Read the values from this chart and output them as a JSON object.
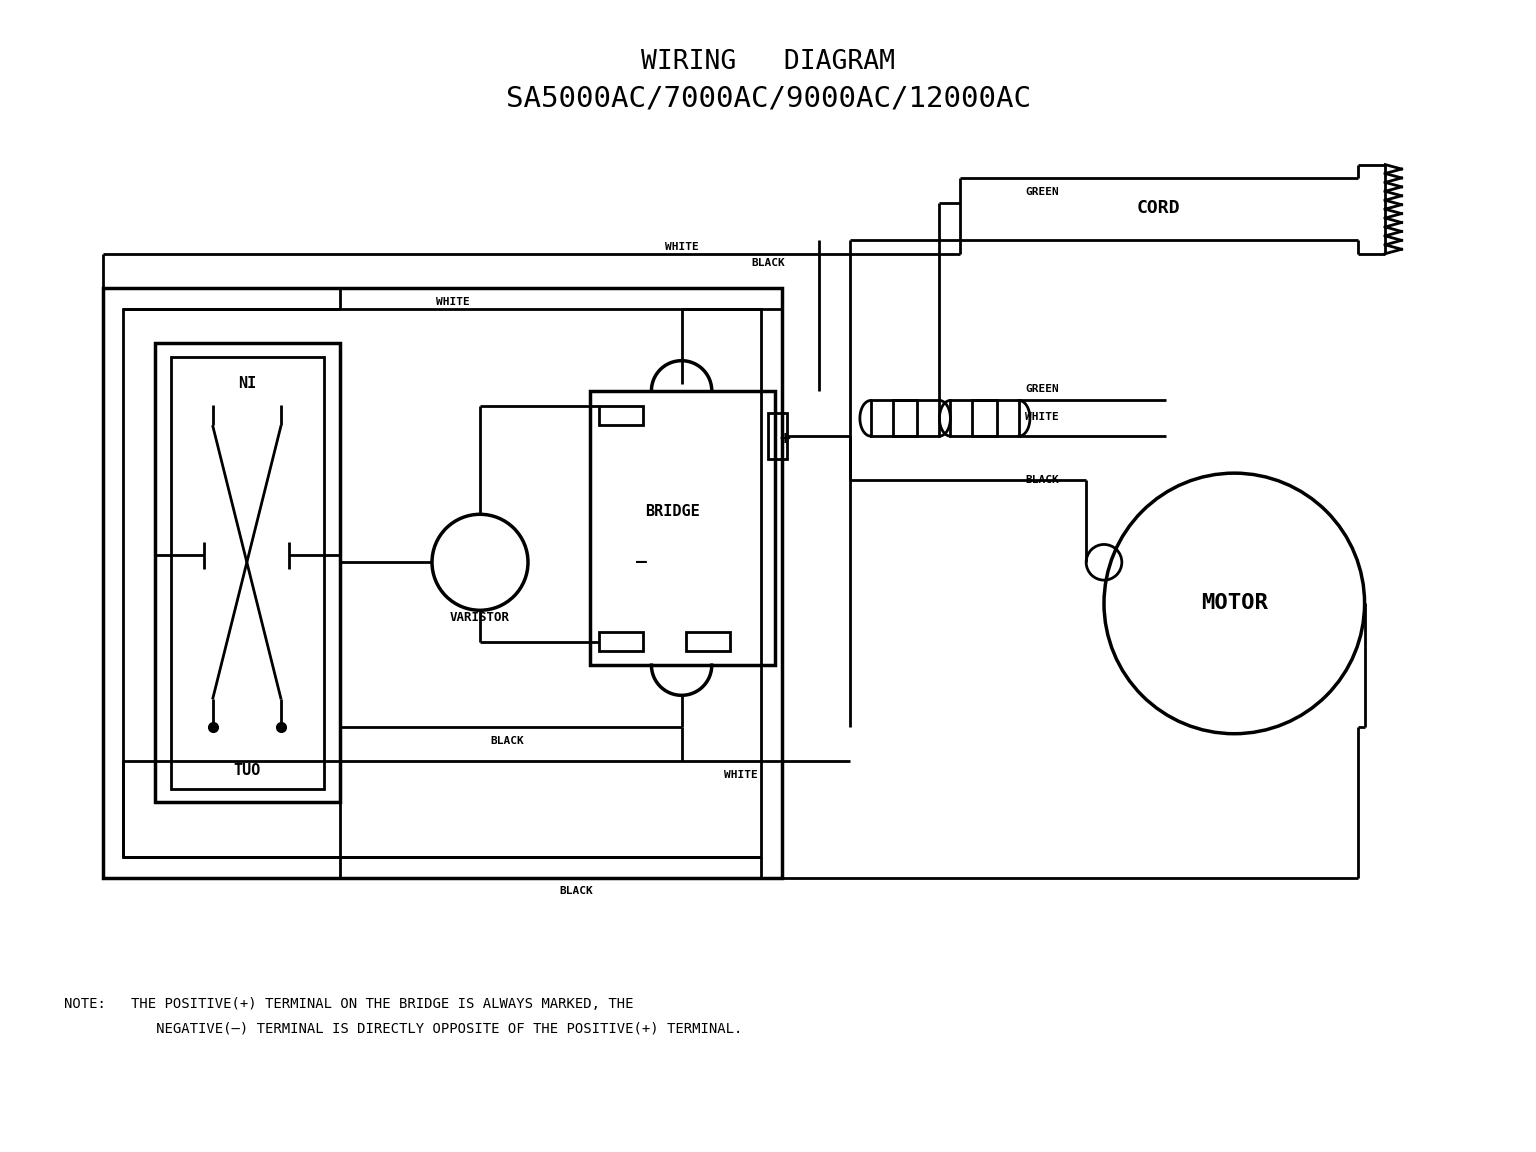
{
  "title1": "WIRING   DIAGRAM",
  "title2": "SA5000AC/7000AC/9000AC/12000AC",
  "note1": "NOTE:   THE POSITIVE(+) TERMINAL ON THE BRIDGE IS ALWAYS MARKED, THE",
  "note2": "           NEGATIVE(–) TERMINAL IS DIRECTLY OPPOSITE OF THE POSITIVE(+) TERMINAL.",
  "bg": "#ffffff",
  "fg": "#000000",
  "lw": 2.0
}
